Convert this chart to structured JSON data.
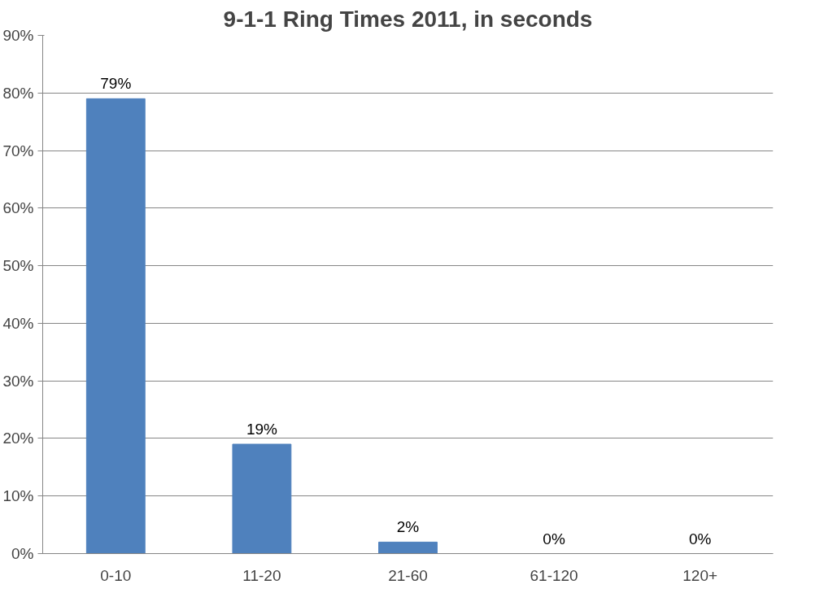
{
  "chart_data": {
    "type": "bar",
    "title": "9-1-1 Ring Times 2011, in seconds",
    "categories": [
      "0-10",
      "11-20",
      "21-60",
      "61-120",
      "120+"
    ],
    "values": [
      79,
      19,
      2,
      0,
      0
    ],
    "value_labels": [
      "79%",
      "19%",
      "2%",
      "0%",
      "0%"
    ],
    "color": "#4f81bd",
    "ylim": [
      0,
      90
    ],
    "yticks": [
      {
        "value": 0,
        "label": "0%"
      },
      {
        "value": 10,
        "label": "10%"
      },
      {
        "value": 20,
        "label": "20%"
      },
      {
        "value": 30,
        "label": "30%"
      },
      {
        "value": 40,
        "label": "40%"
      },
      {
        "value": 50,
        "label": "50%"
      },
      {
        "value": 60,
        "label": "60%"
      },
      {
        "value": 70,
        "label": "70%"
      },
      {
        "value": 80,
        "label": "80%"
      },
      {
        "value": 90,
        "label": "90%"
      }
    ],
    "grid": "y"
  }
}
